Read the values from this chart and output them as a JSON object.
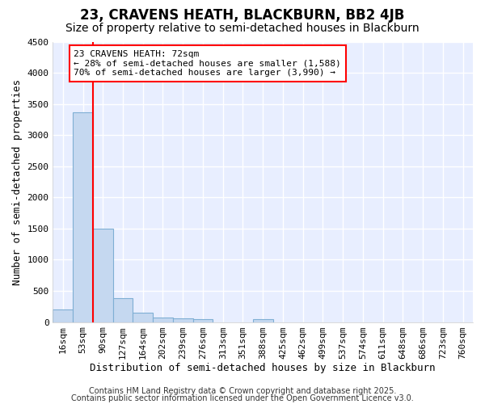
{
  "title": "23, CRAVENS HEATH, BLACKBURN, BB2 4JB",
  "subtitle": "Size of property relative to semi-detached houses in Blackburn",
  "xlabel": "Distribution of semi-detached houses by size in Blackburn",
  "ylabel": "Number of semi-detached properties",
  "bins": [
    "16sqm",
    "53sqm",
    "90sqm",
    "127sqm",
    "164sqm",
    "202sqm",
    "239sqm",
    "276sqm",
    "313sqm",
    "351sqm",
    "388sqm",
    "425sqm",
    "462sqm",
    "499sqm",
    "537sqm",
    "574sqm",
    "611sqm",
    "648sqm",
    "686sqm",
    "723sqm",
    "760sqm"
  ],
  "values": [
    200,
    3360,
    1500,
    380,
    150,
    75,
    55,
    40,
    0,
    0,
    50,
    0,
    0,
    0,
    0,
    0,
    0,
    0,
    0,
    0,
    0
  ],
  "bar_color": "#c5d8f0",
  "bar_edgecolor": "#7fafd4",
  "vline_x_idx": 1.5,
  "vline_color": "red",
  "ylim": [
    0,
    4500
  ],
  "yticks": [
    0,
    500,
    1000,
    1500,
    2000,
    2500,
    3000,
    3500,
    4000,
    4500
  ],
  "annotation_text": "23 CRAVENS HEATH: 72sqm\n← 28% of semi-detached houses are smaller (1,588)\n70% of semi-detached houses are larger (3,990) →",
  "annotation_box_color": "red",
  "annotation_fill": "white",
  "footnote1": "Contains HM Land Registry data © Crown copyright and database right 2025.",
  "footnote2": "Contains public sector information licensed under the Open Government Licence v3.0.",
  "plot_bg_color": "#e8eeff",
  "fig_bg_color": "#ffffff",
  "grid_color": "#ffffff",
  "title_fontsize": 12,
  "subtitle_fontsize": 10,
  "axis_fontsize": 9,
  "tick_fontsize": 8,
  "footnote_fontsize": 7
}
